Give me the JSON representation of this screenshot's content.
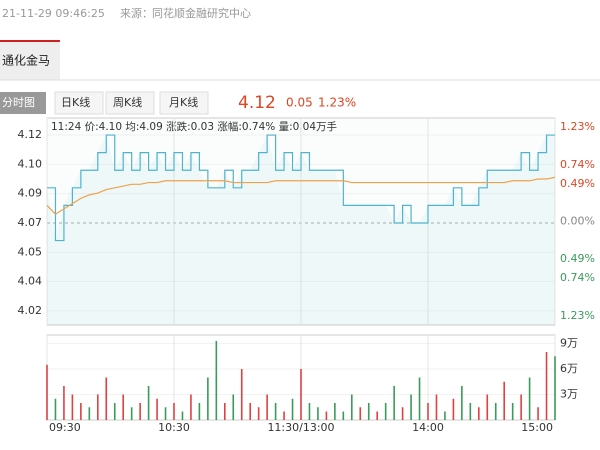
{
  "header": {
    "datetime": "21-11-29 09:46:25",
    "source_label": "来源：",
    "source": "同花顺金融研究中心"
  },
  "stock_tab": "通化金马",
  "tabs": [
    "分时图",
    "日K线",
    "周K线",
    "月K线"
  ],
  "quote": {
    "price": "4.12",
    "change": "0.05",
    "change_pct": "1.23%"
  },
  "chart_data": [
    {
      "type": "line",
      "annotation": "11:24 价:4.10 均:4.09 涨跌:0.03 涨幅:0.74% 量:0.04万手",
      "x": [
        0,
        4,
        8,
        12,
        16,
        20,
        24,
        28,
        32,
        36,
        40,
        44,
        48,
        52,
        56,
        60,
        64,
        68,
        72,
        76,
        80,
        84,
        88,
        92,
        96,
        100,
        104,
        108,
        112,
        116,
        120,
        124,
        128,
        132,
        136,
        140,
        144,
        148,
        152,
        156,
        160,
        164,
        168,
        172,
        176,
        180,
        184,
        188,
        192,
        196,
        200,
        204,
        208,
        212,
        216,
        220,
        224,
        228,
        232,
        236,
        240
      ],
      "xlim": [
        0,
        240
      ],
      "ylim": [
        4.012,
        4.1297
      ],
      "yticks": [
        {
          "value": 4.12,
          "label": "4.12"
        },
        {
          "value": 4.1033,
          "label": "4.10"
        },
        {
          "value": 4.0867,
          "label": "4.09"
        },
        {
          "value": 4.07,
          "label": "4.07"
        },
        {
          "value": 4.0533,
          "label": "4.05"
        },
        {
          "value": 4.0367,
          "label": "4.04"
        },
        {
          "value": 4.02,
          "label": "4.02"
        }
      ],
      "y2lim": [
        -1.35,
        1.35
      ],
      "y2ticks": [
        {
          "value": 1.23,
          "label": "1.23%"
        },
        {
          "value": 0.74,
          "label": "0.74%"
        },
        {
          "value": 0.49,
          "label": "0.49%"
        },
        {
          "value": 0,
          "label": "0.00%"
        },
        {
          "value": -0.49,
          "label": "0.49%"
        },
        {
          "value": -0.74,
          "label": "0.74%"
        },
        {
          "value": -1.23,
          "label": "1.23%"
        }
      ],
      "series": [
        {
          "color": "#4fb3cf",
          "values": [
            4.09,
            4.06,
            4.08,
            4.09,
            4.1,
            4.1,
            4.11,
            4.12,
            4.1,
            4.11,
            4.1,
            4.11,
            4.1,
            4.11,
            4.1,
            4.11,
            4.1,
            4.11,
            4.1,
            4.09,
            4.09,
            4.1,
            4.09,
            4.1,
            4.1,
            4.11,
            4.12,
            4.1,
            4.11,
            4.1,
            4.11,
            4.1,
            4.1,
            4.1,
            4.1,
            4.08,
            4.08,
            4.08,
            4.08,
            4.08,
            4.08,
            4.07,
            4.08,
            4.07,
            4.07,
            4.08,
            4.08,
            4.08,
            4.09,
            4.08,
            4.08,
            4.09,
            4.1,
            4.1,
            4.1,
            4.1,
            4.11,
            4.1,
            4.11,
            4.12,
            4.12
          ]
        },
        {
          "color": "#f0a04b",
          "values": [
            4.08,
            4.075,
            4.078,
            4.081,
            4.084,
            4.086,
            4.087,
            4.089,
            4.09,
            4.091,
            4.092,
            4.092,
            4.093,
            4.093,
            4.094,
            4.094,
            4.094,
            4.094,
            4.094,
            4.094,
            4.094,
            4.094,
            4.093,
            4.093,
            4.093,
            4.093,
            4.093,
            4.094,
            4.094,
            4.094,
            4.094,
            4.094,
            4.094,
            4.094,
            4.094,
            4.094,
            4.093,
            4.093,
            4.093,
            4.093,
            4.093,
            4.093,
            4.093,
            4.093,
            4.093,
            4.093,
            4.093,
            4.093,
            4.093,
            4.093,
            4.093,
            4.093,
            4.093,
            4.093,
            4.093,
            4.094,
            4.094,
            4.094,
            4.095,
            4.095,
            4.096
          ]
        }
      ]
    },
    {
      "type": "bar",
      "x": [
        0,
        4,
        8,
        12,
        16,
        20,
        24,
        28,
        32,
        36,
        40,
        44,
        48,
        52,
        56,
        60,
        64,
        68,
        72,
        76,
        80,
        84,
        88,
        92,
        96,
        100,
        104,
        108,
        112,
        116,
        120,
        124,
        128,
        132,
        136,
        140,
        144,
        148,
        152,
        156,
        160,
        164,
        168,
        172,
        176,
        180,
        184,
        188,
        192,
        196,
        200,
        204,
        208,
        212,
        216,
        220,
        224,
        228,
        232,
        236,
        240
      ],
      "xlim": [
        0,
        240
      ],
      "xticks": [
        {
          "value": 0,
          "label": "09:30"
        },
        {
          "value": 60,
          "label": "10:30"
        },
        {
          "value": 120,
          "label": "11:30/13:00"
        },
        {
          "value": 180,
          "label": "14:00"
        },
        {
          "value": 240,
          "label": "15:00"
        }
      ],
      "ylim": [
        0,
        10
      ],
      "yticks": [
        {
          "value": 9,
          "label": "9万"
        },
        {
          "value": 6,
          "label": "6万"
        },
        {
          "value": 3,
          "label": "3万"
        }
      ],
      "values": [
        6.5,
        2.5,
        4,
        3,
        2,
        1.5,
        3,
        5,
        2,
        3,
        1.5,
        2,
        4,
        2.5,
        1.5,
        2,
        1,
        3,
        2,
        5,
        9.3,
        2,
        3,
        6,
        2,
        1.5,
        3,
        2,
        1,
        2.5,
        6,
        2,
        1.5,
        1,
        2,
        1,
        3,
        1.5,
        2,
        1,
        2,
        4,
        1.5,
        3,
        5,
        2,
        3,
        1,
        2.5,
        4,
        2,
        1.5,
        3,
        2,
        4.5,
        2,
        3,
        5,
        1.5,
        8,
        7.5
      ],
      "colors": [
        "#e04040",
        "#3a9a5a",
        "#e04040",
        "#e04040",
        "#e04040",
        "#3a9a5a",
        "#e04040",
        "#e04040",
        "#3a9a5a",
        "#e04040",
        "#3a9a5a",
        "#e04040",
        "#3a9a5a",
        "#e04040",
        "#3a9a5a",
        "#e04040",
        "#3a9a5a",
        "#e04040",
        "#3a9a5a",
        "#3a9a5a",
        "#3a9a5a",
        "#e04040",
        "#3a9a5a",
        "#e04040",
        "#e04040",
        "#e04040",
        "#e04040",
        "#3a9a5a",
        "#e04040",
        "#3a9a5a",
        "#e04040",
        "#3a9a5a",
        "#3a9a5a",
        "#e04040",
        "#3a9a5a",
        "#3a9a5a",
        "#3a9a5a",
        "#e04040",
        "#3a9a5a",
        "#e04040",
        "#3a9a5a",
        "#3a9a5a",
        "#e04040",
        "#3a9a5a",
        "#3a9a5a",
        "#e04040",
        "#e04040",
        "#3a9a5a",
        "#e04040",
        "#3a9a5a",
        "#3a9a5a",
        "#e04040",
        "#e04040",
        "#3a9a5a",
        "#e04040",
        "#3a9a5a",
        "#e04040",
        "#3a9a5a",
        "#e04040",
        "#e04040",
        "#3a9a5a"
      ]
    }
  ]
}
